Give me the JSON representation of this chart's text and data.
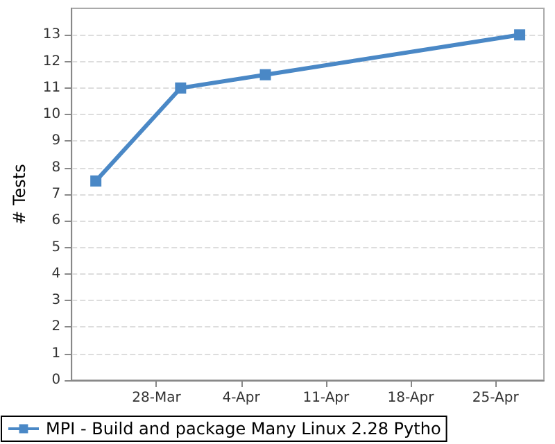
{
  "chart_data": {
    "type": "line",
    "ylabel": "# Tests",
    "x": [
      "--03-23",
      "--03-30",
      "--04-06",
      "--04-27"
    ],
    "series": [
      {
        "name": "MPI - Build and package Many Linux 2.28 Pytho",
        "color": "#4a88c6",
        "values": [
          7.5,
          11,
          11.5,
          13
        ]
      }
    ],
    "xlim": [
      "--03-21",
      "--04-29"
    ],
    "xticks": [
      {
        "value": "--03-28",
        "label": "28-Mar"
      },
      {
        "value": "--04-04",
        "label": "4-Apr"
      },
      {
        "value": "--04-11",
        "label": "11-Apr"
      },
      {
        "value": "--04-18",
        "label": "18-Apr"
      },
      {
        "value": "--04-25",
        "label": "25-Apr"
      }
    ],
    "ylim": [
      0,
      14
    ],
    "yticks": [
      0,
      1,
      2,
      3,
      4,
      5,
      6,
      7,
      8,
      9,
      10,
      11,
      12,
      13
    ],
    "grid": "y",
    "legend": "bottom",
    "marker": "square",
    "line_style": "solid"
  }
}
